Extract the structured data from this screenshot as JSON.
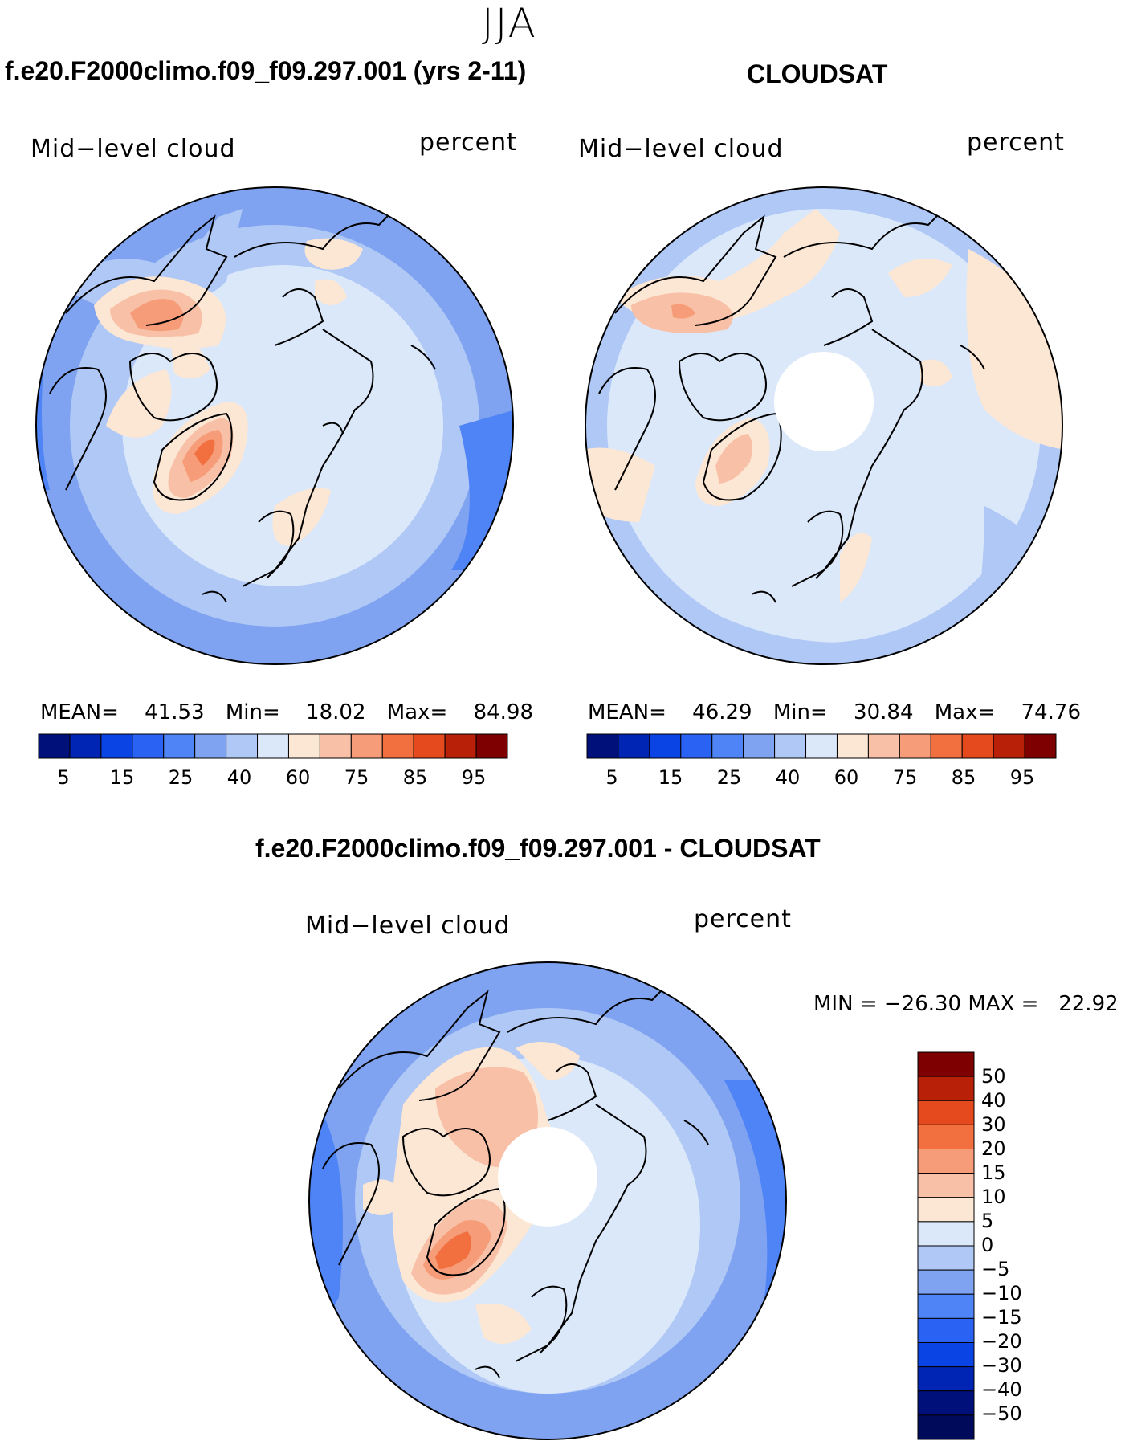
{
  "season": "JJA",
  "panels": [
    {
      "id": "model",
      "title": "f.e20.F2000climo.f09_f09.297.001 (yrs 2-11)",
      "left_label": "Mid−level cloud",
      "right_label": "percent",
      "mean_label": "MEAN=",
      "mean": "41.53",
      "min_label": "Min=",
      "min": "18.02",
      "max_label": "Max=",
      "max": "84.98",
      "ticks": [
        "5",
        "15",
        "25",
        "40",
        "60",
        "75",
        "85",
        "95"
      ]
    },
    {
      "id": "obs",
      "title": "CLOUDSAT",
      "left_label": "Mid−level cloud",
      "right_label": "percent",
      "mean_label": "MEAN=",
      "mean": "46.29",
      "min_label": "Min=",
      "min": "30.84",
      "max_label": "Max=",
      "max": "74.76",
      "ticks": [
        "5",
        "15",
        "25",
        "40",
        "60",
        "75",
        "85",
        "95"
      ]
    }
  ],
  "diff": {
    "title": "f.e20.F2000climo.f09_f09.297.001 - CLOUDSAT",
    "left_label": "Mid−level cloud",
    "right_label": "percent",
    "minmax": "MIN = −26.30 MAX =   22.92",
    "ticks": [
      "50",
      "40",
      "30",
      "20",
      "15",
      "10",
      "5",
      "0",
      "−5",
      "−10",
      "−15",
      "−20",
      "−30",
      "−40",
      "−50"
    ]
  },
  "colors": {
    "seq": [
      "#00107a",
      "#0024b4",
      "#0a44e4",
      "#2a63f4",
      "#4f84f6",
      "#7fa3f0",
      "#b0c8f6",
      "#dbe8fa",
      "#fce6d4",
      "#f8c0a6",
      "#f69c78",
      "#f2703f",
      "#e44a1e",
      "#b82008",
      "#7e0000"
    ],
    "diff": [
      "#7e0000",
      "#b82008",
      "#e44a1e",
      "#f2703f",
      "#f69c78",
      "#f8c0a6",
      "#fce6d4",
      "#dbe8fa",
      "#b0c8f6",
      "#7fa3f0",
      "#4f84f6",
      "#2a63f4",
      "#0a44e4",
      "#0024b4",
      "#00107a",
      "#000a5a"
    ]
  }
}
